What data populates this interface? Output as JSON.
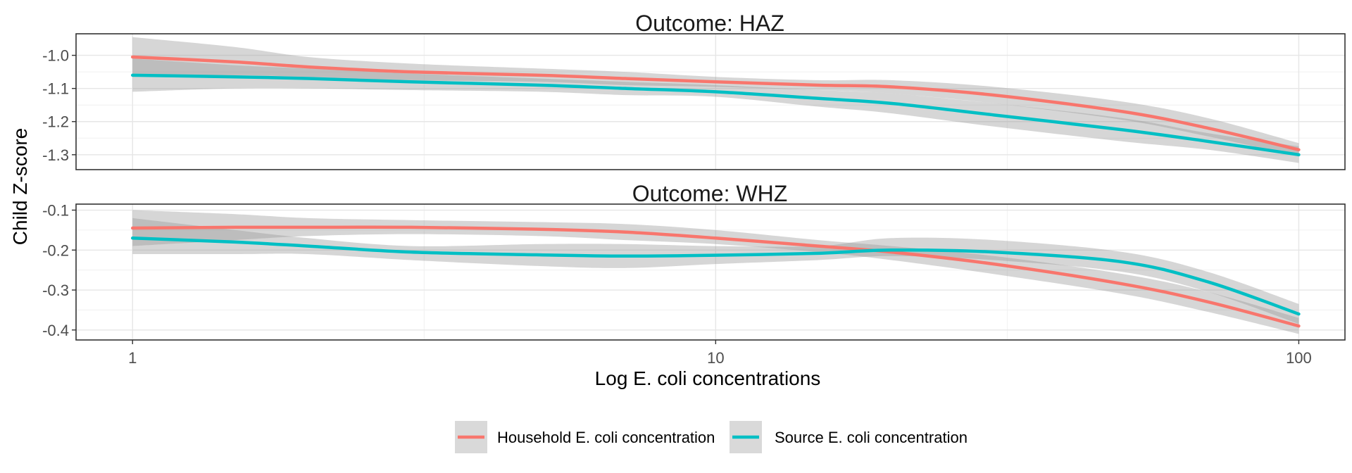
{
  "chart_data": {
    "type": "line",
    "ylabel": "Child Z-score",
    "xlabel": "Log E. coli concentrations",
    "x_scale": "log",
    "xlim": [
      0.8,
      120
    ],
    "x_ticks": [
      1,
      10,
      100
    ],
    "x_tick_labels": [
      "1",
      "10",
      "100"
    ],
    "grid": true,
    "legend_position": "bottom",
    "series_colors": [
      "#F8766D",
      "#00BFC4"
    ],
    "legend": [
      {
        "name": "Household E. coli concentration",
        "color": "#F8766D"
      },
      {
        "name": "Source E. coli concentration",
        "color": "#00BFC4"
      }
    ],
    "panels": [
      {
        "title": "Outcome: HAZ",
        "ylim": [
          -1.345,
          -0.935
        ],
        "y_ticks": [
          -1.0,
          -1.1,
          -1.2,
          -1.3
        ],
        "y_tick_labels": [
          "-1.0",
          "-1.1",
          "-1.2",
          "-1.3"
        ],
        "series": [
          {
            "name": "Household E. coli concentration",
            "x": [
              1,
              1.5,
              2,
              3,
              5,
              7,
              10,
              15,
              20,
              30,
              50,
              70,
              100
            ],
            "y": [
              -1.005,
              -1.02,
              -1.035,
              -1.05,
              -1.06,
              -1.07,
              -1.08,
              -1.09,
              -1.095,
              -1.12,
              -1.17,
              -1.22,
              -1.285
            ],
            "ci_lower": [
              -1.065,
              -1.06,
              -1.065,
              -1.075,
              -1.08,
              -1.09,
              -1.095,
              -1.105,
              -1.115,
              -1.145,
              -1.195,
              -1.245,
              -1.305
            ],
            "ci_upper": [
              -0.945,
              -0.975,
              -1.005,
              -1.025,
              -1.04,
              -1.05,
              -1.065,
              -1.075,
              -1.075,
              -1.095,
              -1.14,
              -1.19,
              -1.265
            ]
          },
          {
            "name": "Source E. coli concentration",
            "x": [
              1,
              1.5,
              2,
              3,
              5,
              7,
              10,
              15,
              20,
              30,
              50,
              70,
              100
            ],
            "y": [
              -1.06,
              -1.065,
              -1.07,
              -1.08,
              -1.09,
              -1.1,
              -1.11,
              -1.13,
              -1.145,
              -1.18,
              -1.225,
              -1.26,
              -1.3
            ],
            "ci_lower": [
              -1.11,
              -1.1,
              -1.1,
              -1.105,
              -1.11,
              -1.12,
              -1.125,
              -1.155,
              -1.175,
              -1.215,
              -1.26,
              -1.285,
              -1.325
            ],
            "ci_upper": [
              -1.01,
              -1.03,
              -1.04,
              -1.055,
              -1.07,
              -1.08,
              -1.09,
              -1.105,
              -1.115,
              -1.145,
              -1.19,
              -1.235,
              -1.275
            ]
          }
        ]
      },
      {
        "title": "Outcome: WHZ",
        "ylim": [
          -0.425,
          -0.085
        ],
        "y_ticks": [
          -0.1,
          -0.2,
          -0.3,
          -0.4
        ],
        "y_tick_labels": [
          "-0.1",
          "-0.2",
          "-0.3",
          "-0.4"
        ],
        "series": [
          {
            "name": "Household E. coli concentration",
            "x": [
              1,
              1.5,
              2,
              3,
              5,
              7,
              10,
              15,
              20,
              30,
              50,
              70,
              100
            ],
            "y": [
              -0.145,
              -0.143,
              -0.143,
              -0.143,
              -0.148,
              -0.155,
              -0.17,
              -0.19,
              -0.205,
              -0.235,
              -0.285,
              -0.33,
              -0.39
            ],
            "ci_lower": [
              -0.19,
              -0.175,
              -0.165,
              -0.16,
              -0.165,
              -0.175,
              -0.185,
              -0.205,
              -0.225,
              -0.26,
              -0.31,
              -0.355,
              -0.41
            ],
            "ci_upper": [
              -0.1,
              -0.11,
              -0.12,
              -0.125,
              -0.13,
              -0.135,
              -0.15,
              -0.175,
              -0.19,
              -0.215,
              -0.26,
              -0.305,
              -0.37
            ]
          },
          {
            "name": "Source E. coli concentration",
            "x": [
              1,
              1.5,
              2,
              3,
              5,
              7,
              10,
              15,
              20,
              30,
              50,
              70,
              100
            ],
            "y": [
              -0.17,
              -0.18,
              -0.19,
              -0.205,
              -0.212,
              -0.215,
              -0.213,
              -0.208,
              -0.2,
              -0.205,
              -0.23,
              -0.28,
              -0.36
            ],
            "ci_lower": [
              -0.21,
              -0.21,
              -0.21,
              -0.225,
              -0.24,
              -0.245,
              -0.235,
              -0.225,
              -0.215,
              -0.225,
              -0.255,
              -0.305,
              -0.385
            ],
            "ci_upper": [
              -0.12,
              -0.15,
              -0.17,
              -0.19,
              -0.185,
              -0.185,
              -0.19,
              -0.19,
              -0.17,
              -0.175,
              -0.205,
              -0.255,
              -0.335
            ]
          }
        ]
      }
    ]
  }
}
